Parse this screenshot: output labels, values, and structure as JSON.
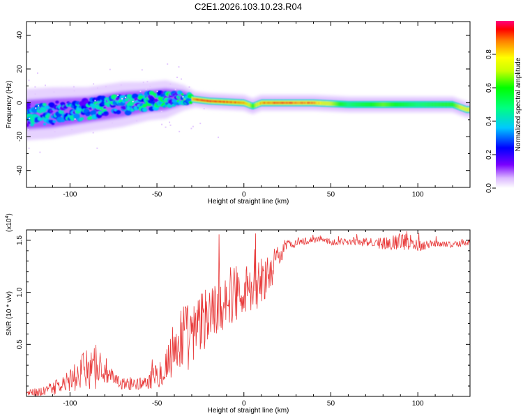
{
  "title": "C2E1.2026.103.10.23.R04",
  "chart_data": [
    {
      "type": "heatmap",
      "xlabel": "Height of straight line (km)",
      "ylabel": "Frequency (Hz)",
      "xlim": [
        -125,
        130
      ],
      "ylim": [
        -50,
        48
      ],
      "xticks": [
        -100,
        -50,
        0,
        50,
        100
      ],
      "xtick_labels": [
        "-100",
        "-50",
        "0",
        "50",
        "100"
      ],
      "yticks": [
        -40,
        -20,
        0,
        20,
        40
      ],
      "ytick_labels": [
        "-40",
        "-20",
        "0",
        "20",
        "40"
      ],
      "ridge": {
        "x": [
          -125,
          -110,
          -90,
          -70,
          -55,
          -45,
          -35,
          -28,
          -20,
          -10,
          0,
          5,
          10,
          20,
          40,
          60,
          80,
          100,
          120,
          128
        ],
        "y": [
          -7,
          -6,
          -4,
          -1,
          1,
          2,
          3,
          2,
          1,
          0.5,
          0,
          -2,
          0,
          0,
          0,
          -1,
          -1,
          -1,
          -1,
          -4
        ],
        "amplitude": [
          0.45,
          0.45,
          0.5,
          0.5,
          0.55,
          0.6,
          0.7,
          0.95,
          1.0,
          0.95,
          0.9,
          0.6,
          0.9,
          0.95,
          0.9,
          0.5,
          0.65,
          0.5,
          0.6,
          0.8
        ],
        "spread_hz": [
          8,
          8,
          7,
          7,
          6,
          6,
          4,
          2.5,
          2.5,
          2.5,
          2.5,
          2.5,
          2.5,
          2.5,
          2.5,
          2.5,
          2.5,
          2.5,
          2.5,
          2.5
        ]
      },
      "colorbar": {
        "label": "Normalized spectral amplitude",
        "range": [
          0,
          1
        ],
        "ticks": [
          0.0,
          0.2,
          0.4,
          0.6,
          0.8
        ],
        "tick_labels": [
          "0.0",
          "0.2",
          "0.4",
          "0.6",
          "0.8"
        ]
      }
    },
    {
      "type": "line",
      "xlabel": "Height of straight line (km)",
      "ylabel": "SNR (10 * v/v)",
      "scale_note": "(x10",
      "scale_exp": "4",
      "scale_close": ")",
      "xlim": [
        -125,
        130
      ],
      "ylim": [
        0,
        1.6
      ],
      "xticks": [
        -100,
        -50,
        0,
        50,
        100
      ],
      "xtick_labels": [
        "-100",
        "-50",
        "0",
        "50",
        "100"
      ],
      "yticks": [
        0.5,
        1.0,
        1.5
      ],
      "ytick_labels": [
        "0.5",
        "1.0",
        "1.5"
      ],
      "color": "#e83a3a",
      "x": [
        -125,
        -115,
        -105,
        -95,
        -90,
        -85,
        -80,
        -75,
        -70,
        -60,
        -55,
        -50,
        -45,
        -40,
        -35,
        -30,
        -25,
        -20,
        -15,
        -10,
        -5,
        0,
        5,
        10,
        15,
        20,
        25,
        30,
        40,
        45,
        50,
        60,
        70,
        80,
        90,
        95,
        100,
        110,
        120,
        130
      ],
      "y": [
        0.03,
        0.05,
        0.1,
        0.2,
        0.28,
        0.3,
        0.25,
        0.15,
        0.12,
        0.12,
        0.15,
        0.2,
        0.3,
        0.45,
        0.6,
        0.55,
        0.7,
        0.8,
        0.85,
        0.95,
        1.0,
        1.05,
        1.0,
        1.1,
        1.2,
        1.35,
        1.45,
        1.48,
        1.5,
        1.52,
        1.48,
        1.49,
        1.48,
        1.47,
        1.49,
        1.5,
        1.45,
        1.47,
        1.46,
        1.48
      ],
      "noise": [
        0.03,
        0.05,
        0.08,
        0.15,
        0.2,
        0.25,
        0.15,
        0.08,
        0.06,
        0.06,
        0.08,
        0.12,
        0.2,
        0.3,
        0.35,
        0.3,
        0.3,
        0.3,
        0.28,
        0.28,
        0.28,
        0.25,
        0.25,
        0.25,
        0.2,
        0.1,
        0.06,
        0.04,
        0.03,
        0.03,
        0.03,
        0.03,
        0.04,
        0.06,
        0.08,
        0.1,
        0.06,
        0.03,
        0.03,
        0.03
      ]
    }
  ]
}
